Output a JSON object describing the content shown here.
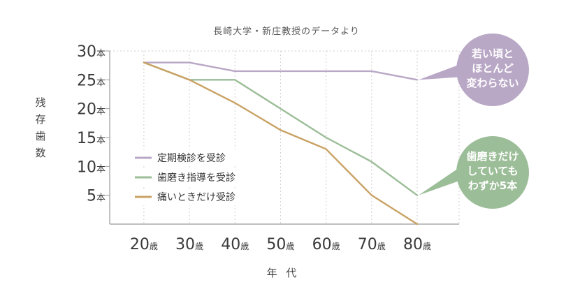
{
  "source_note": "長崎大学・新庄教授のデータより",
  "colors": {
    "series_periodic": "#b9a7c6",
    "series_guidance": "#9bbd97",
    "series_pain": "#c9a264",
    "bubble_purple": "#b9a7c6",
    "bubble_green": "#9bbd97",
    "axis": "#999999",
    "grid": "#cfcfcf"
  },
  "chart_data": {
    "type": "line",
    "x": [
      20,
      30,
      40,
      50,
      60,
      70,
      80
    ],
    "xtick_labels": [
      {
        "num": "20",
        "unit": "歳"
      },
      {
        "num": "30",
        "unit": "歳"
      },
      {
        "num": "40",
        "unit": "歳"
      },
      {
        "num": "50",
        "unit": "歳"
      },
      {
        "num": "60",
        "unit": "歳"
      },
      {
        "num": "70",
        "unit": "歳"
      },
      {
        "num": "80",
        "unit": "歳"
      }
    ],
    "ytick_labels": [
      {
        "value": 5,
        "num": "5",
        "unit": "本"
      },
      {
        "value": 10,
        "num": "10",
        "unit": "本"
      },
      {
        "value": 15,
        "num": "15",
        "unit": "本"
      },
      {
        "value": 20,
        "num": "20",
        "unit": "本"
      },
      {
        "value": 25,
        "num": "25",
        "unit": "本"
      },
      {
        "value": 30,
        "num": "30",
        "unit": "本"
      }
    ],
    "ylim": [
      0,
      30
    ],
    "xlim": [
      12.5,
      80
    ],
    "xlabel": "年 代",
    "ylabel": "残存歯数",
    "grid": "vertical dashed",
    "legend_position": "bottom-left",
    "series": [
      {
        "name": "定期検診を受診",
        "color": "#b9a7c6",
        "values": [
          28,
          28,
          26.5,
          26.5,
          26.5,
          26.5,
          25
        ]
      },
      {
        "name": "歯磨き指導を受診",
        "color": "#9bbd97",
        "values": [
          28,
          25,
          25,
          20,
          15,
          10.8,
          5
        ]
      },
      {
        "name": "痛いときだけ受診",
        "color": "#c9a264",
        "values": [
          28,
          25,
          21,
          16.3,
          13,
          5,
          0
        ]
      }
    ],
    "annotations": [
      {
        "text_lines": [
          "若い頃と",
          "ほとんど",
          "変わらない"
        ],
        "series": "定期検診を受診",
        "color": "#b9a7c6"
      },
      {
        "text_lines": [
          "歯磨きだけ",
          "していても",
          "わずか5本"
        ],
        "series": "歯磨き指導を受診",
        "color": "#9bbd97"
      }
    ]
  }
}
